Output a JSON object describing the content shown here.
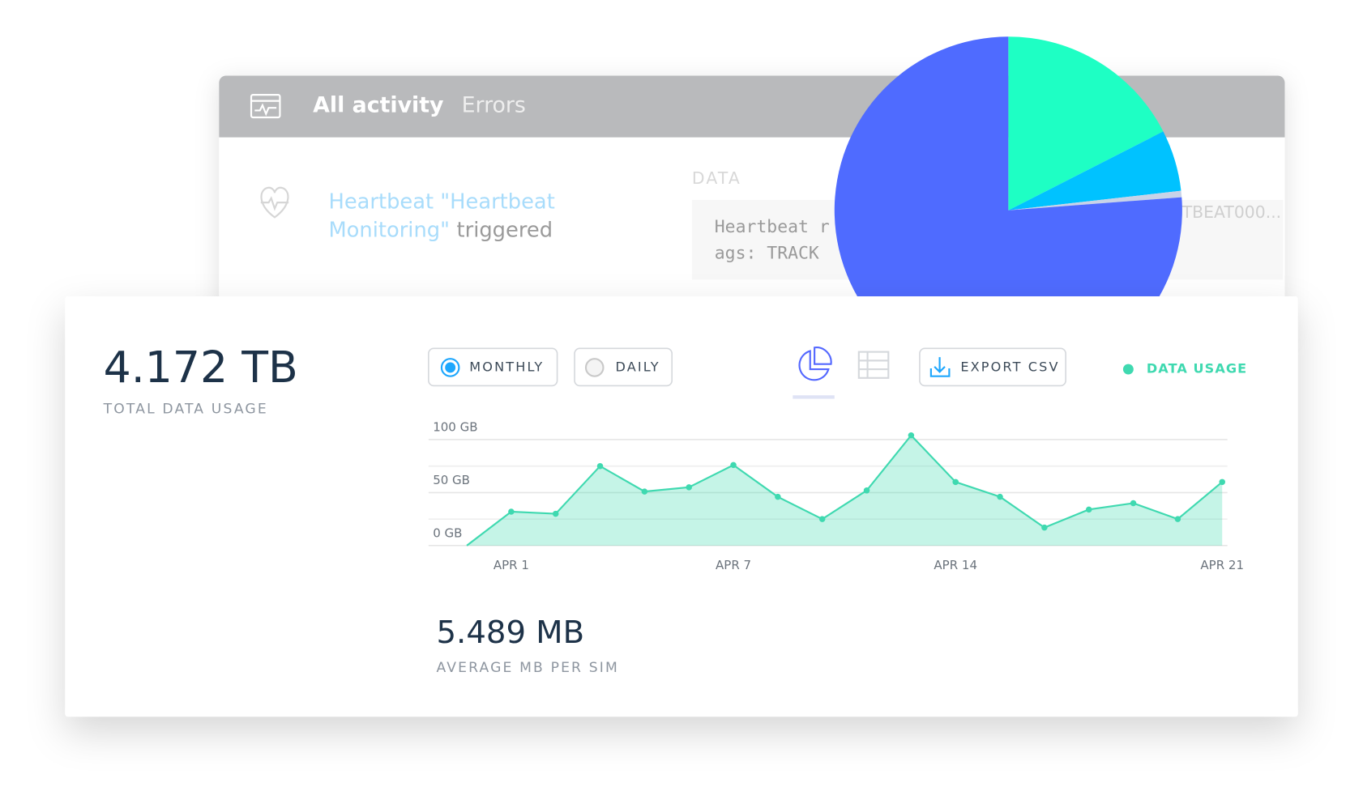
{
  "activity_panel": {
    "tabs": [
      "All activity",
      "Errors"
    ],
    "event": {
      "link_lines": [
        "Heartbeat \"Heartbeat",
        "Monitoring\""
      ],
      "text": "triggered"
    },
    "data_label": "DATA",
    "data_lines": [
      "Heartbeat r",
      "ags: TRACK"
    ],
    "id": "TBEAT000..."
  },
  "usage_panel": {
    "total_value": "4.172 TB",
    "total_label": "TOTAL DATA USAGE",
    "toggles": [
      "MONTHLY",
      "DAILY"
    ],
    "export": "EXPORT CSV",
    "average_value": "5.489 MB",
    "average_label": "AVERAGE MB PER SIM"
  },
  "chart_data": [
    {
      "type": "area",
      "categories": [
        null,
        "APR 1",
        null,
        null,
        null,
        null,
        "APR 7",
        null,
        null,
        null,
        null,
        "APR 14",
        null,
        null,
        null,
        null,
        null,
        "APR 21"
      ],
      "series": [
        {
          "name": "DATA USAGE",
          "color": "#3fd9b0",
          "values": [
            0,
            32,
            30,
            75,
            51,
            55,
            76,
            46,
            25,
            52,
            104,
            60,
            46,
            17,
            34,
            40,
            25,
            60
          ]
        }
      ],
      "ylim": [
        0,
        100
      ],
      "yticks": [
        {
          "value": 0,
          "label": "0 GB"
        },
        {
          "value": 50,
          "label": "50 GB"
        },
        {
          "value": 100,
          "label": "100 GB"
        }
      ],
      "minor_yticks": [
        25,
        75
      ],
      "grid": true
    },
    {
      "type": "pie",
      "values": [
        17.5,
        5.7,
        0.6,
        76.2
      ],
      "colors": [
        "#1effc4",
        "#00c2ff",
        "#c8d3e8",
        "#4f6bff"
      ]
    }
  ]
}
